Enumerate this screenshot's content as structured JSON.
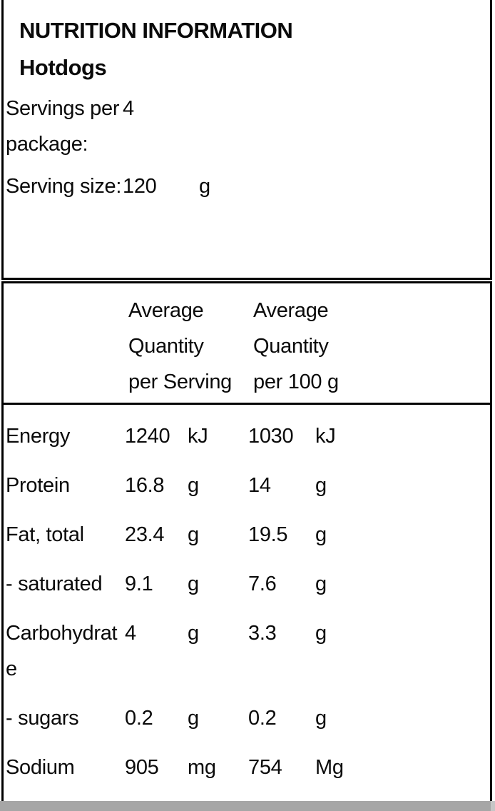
{
  "header": {
    "title_line1": "NUTRITION INFORMATION",
    "title_line2": "Hotdogs"
  },
  "package_info": {
    "servings_label": "Servings per package:",
    "servings_value": "4",
    "serving_size_label": "Serving size:",
    "serving_size_value": "120",
    "serving_size_unit": "g"
  },
  "table": {
    "col_serving_header": "Average Quantity per Serving",
    "col_100g_header": "Average Quantity per 100 g",
    "rows": [
      {
        "label": "Energy",
        "qty_serving": "1240",
        "unit_serving": "kJ",
        "qty_100g": "1030",
        "unit_100g": "kJ"
      },
      {
        "label": "Protein",
        "qty_serving": "16.8",
        "unit_serving": "g",
        "qty_100g": "14",
        "unit_100g": "g"
      },
      {
        "label": "Fat, total",
        "qty_serving": "23.4",
        "unit_serving": "g",
        "qty_100g": "19.5",
        "unit_100g": "g"
      },
      {
        "label": "- saturated",
        "qty_serving": "9.1",
        "unit_serving": "g",
        "qty_100g": "7.6",
        "unit_100g": "g"
      },
      {
        "label": "Carbohydrate",
        "qty_serving": "4",
        "unit_serving": "g",
        "qty_100g": "3.3",
        "unit_100g": "g"
      },
      {
        "label": "- sugars",
        "qty_serving": "0.2",
        "unit_serving": "g",
        "qty_100g": "0.2",
        "unit_100g": "g"
      },
      {
        "label": "Sodium",
        "qty_serving": "905",
        "unit_serving": "mg",
        "qty_100g": "754",
        "unit_100g": "Mg"
      }
    ]
  },
  "colors": {
    "border": "#000000",
    "text": "#0a0a0a",
    "background": "#ffffff",
    "scrollbar_thumb": "#a6a6a6",
    "scrollbar_track": "#c6c6c6"
  }
}
